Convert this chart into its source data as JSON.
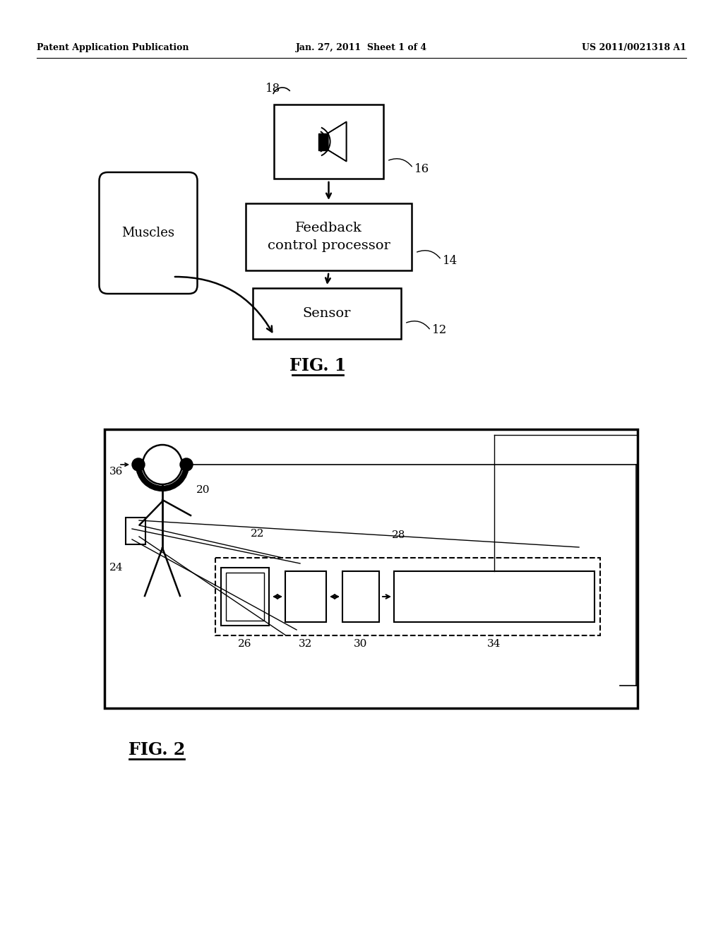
{
  "bg_color": "#ffffff",
  "header_left": "Patent Application Publication",
  "header_center": "Jan. 27, 2011  Sheet 1 of 4",
  "header_right": "US 2011/0021318 A1",
  "fig1_title": "FIG. 1",
  "fig2_title": "FIG. 2",
  "sensor_label": "Sensor",
  "sensor_ref": "12",
  "feedback_label": "Feedback\ncontrol processor",
  "feedback_ref": "14",
  "speaker_ref": "16",
  "speaker_num": "18",
  "muscles_label": "Muscles",
  "ref_36": "36",
  "ref_20": "20",
  "ref_22": "22",
  "ref_24": "24",
  "ref_26": "26",
  "ref_28": "28",
  "ref_30": "30",
  "ref_32": "32",
  "ref_34": "34"
}
